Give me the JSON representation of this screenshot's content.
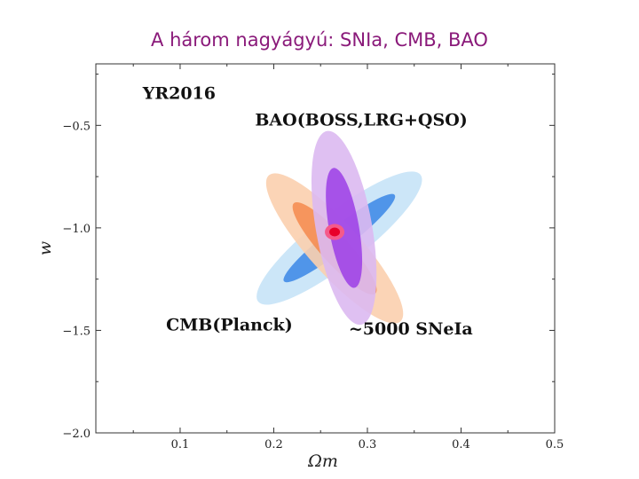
{
  "slide": {
    "title": "A három nagyágyú: SNIa, CMB, BAO"
  },
  "chart_data": {
    "type": "contour",
    "xlabel": "Ωm",
    "ylabel": "w",
    "xlim": [
      0.01,
      0.5
    ],
    "ylim": [
      -2.0,
      -0.2
    ],
    "xticks": [
      0.1,
      0.2,
      0.3,
      0.4,
      0.5
    ],
    "xtick_labels": [
      "0.1",
      "0.2",
      "0.3",
      "0.4",
      "0.5"
    ],
    "yticks": [
      -0.5,
      -1.0,
      -1.5,
      -2.0
    ],
    "ytick_labels": [
      "−0.5",
      "−1.0",
      "−1.5",
      "−2.0"
    ],
    "grid": false,
    "annotations": [
      {
        "text": "YR2016",
        "x": 0.06,
        "y": -0.37
      },
      {
        "text": "BAO(BOSS,LRG+QSO)",
        "x": 0.18,
        "y": -0.5
      },
      {
        "text": "CMB(Planck)",
        "x": 0.085,
        "y": -1.5
      },
      {
        "text": "~5000 SNeIa",
        "x": 0.28,
        "y": -1.52
      }
    ],
    "series": [
      {
        "color_outer": "#c7e3f7",
        "color_inner": "#3a86e6",
        "center": [
          0.27,
          -1.05
        ],
        "outer": {
          "semi_major": 0.22,
          "semi_minor": 0.055,
          "angle_deg": -38
        },
        "inner": {
          "semi_major": 0.15,
          "semi_minor": 0.025,
          "angle_deg": -38
        }
      },
      {
        "color_outer": "#fbcfae",
        "color_inner": "#f58a4e",
        "center": [
          0.265,
          -1.1
        ],
        "outer": {
          "semi_major": 0.21,
          "semi_minor": 0.055,
          "angle_deg": 48
        },
        "inner": {
          "semi_major": 0.13,
          "semi_minor": 0.03,
          "angle_deg": 48
        }
      },
      {
        "color_outer": "#dbb9f1",
        "color_inner": "#9c3ee6",
        "center": [
          0.275,
          -1.0
        ],
        "outer": {
          "semi_major": 0.21,
          "semi_minor": 0.06,
          "angle_deg": 80
        },
        "inner": {
          "semi_major": 0.13,
          "semi_minor": 0.032,
          "angle_deg": 80
        }
      }
    ],
    "best_fit": {
      "x": 0.265,
      "y": -1.02,
      "color_inner": "#e8002a",
      "color_outer": "#f55a8a"
    }
  }
}
